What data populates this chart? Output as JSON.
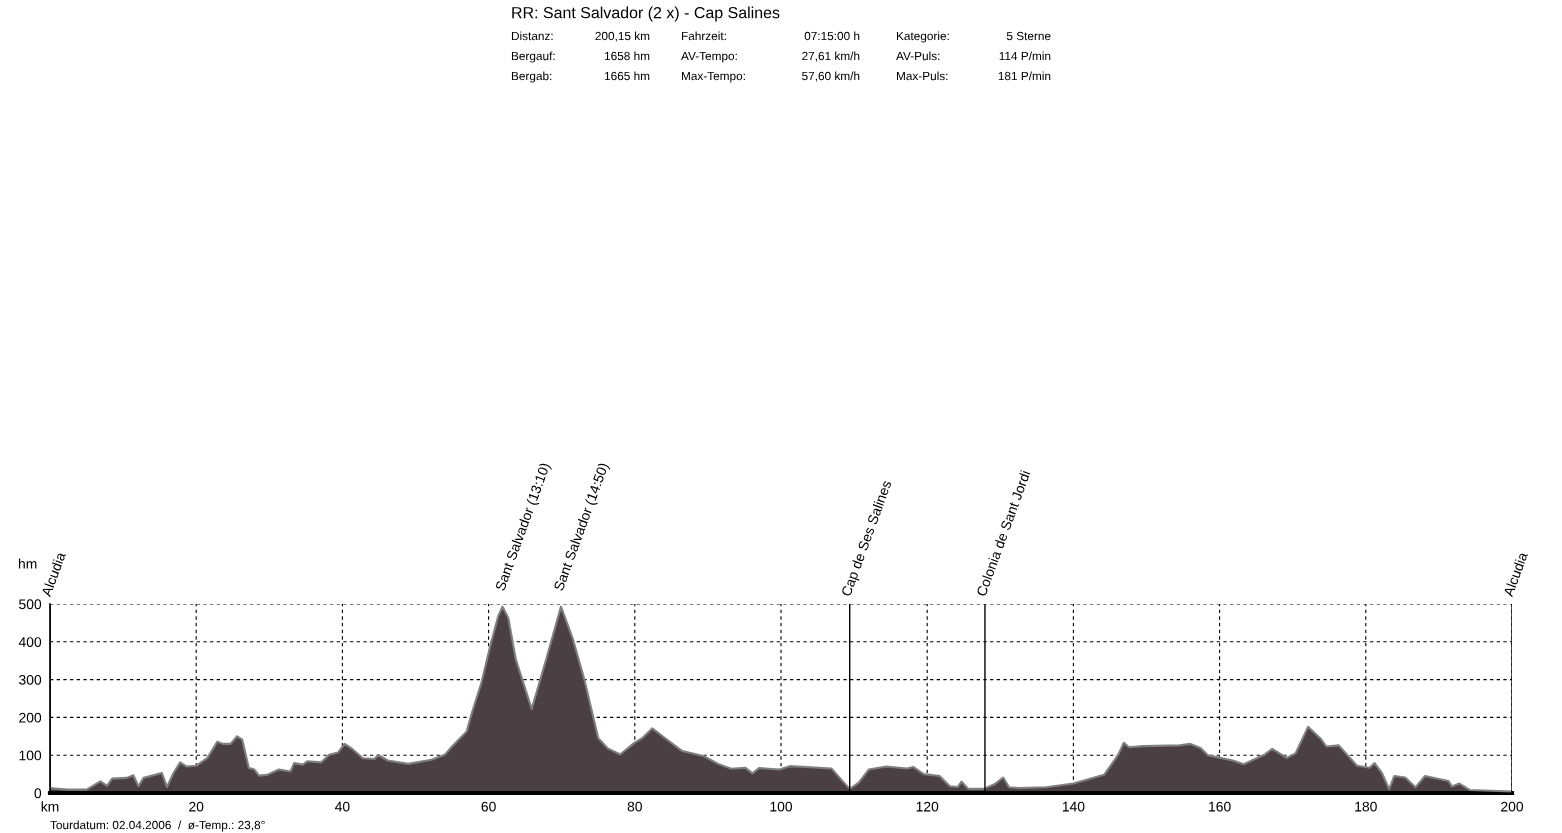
{
  "chart_data": {
    "type": "area",
    "title": "RR: Sant Salvador (2 x) - Cap Salines",
    "xlabel": "hm",
    "annotations": [
      "Distanz:",
      "200,15 km",
      "Fahrzeit:",
      "07:15:00 h",
      "Kategorie:",
      "5 Sterne",
      "Bergauf:",
      "1658 hm",
      "AV-Tempo:",
      "27,61 km/h",
      "AV-Puls:",
      "114 P/min",
      "Bergab:",
      "1665 hm",
      "Max-Tempo:",
      "57,60 km/h",
      "Max-Puls:",
      "181 P/min",
      "Tourdatum: 02.04.2006  /  ø-Temp.: 23,8°",
      {
        "text": "Sant Salvador (13:10)",
        "x": 61.9,
        "y": 493
      },
      {
        "text": "Sant Salvador (14:50)",
        "x": 69.9,
        "y": 493
      }
    ],
    "series": [
      {
        "color": "#4a4044",
        "x": [
          0,
          2.3,
          5,
          6.9,
          7.8,
          8.5,
          10.5,
          11.4,
          12.1,
          12.8,
          15.3,
          16,
          16.9,
          17.8,
          18.7,
          20,
          21.5,
          22.9,
          23.6,
          24.7,
          25.6,
          26.3,
          27.2,
          27.9,
          28.6,
          29.7,
          31.3,
          32.9,
          33.4,
          34.6,
          35.2,
          37.1,
          38.2,
          39.4,
          40.3,
          41.2,
          42.8,
          44.4,
          44.9,
          46.2,
          49,
          52.2,
          54,
          55,
          57,
          57.7,
          59,
          60.2,
          61.3,
          61.9,
          62.7,
          63.7,
          65.9,
          67.9,
          69.9,
          71.5,
          73.1,
          75,
          76.3,
          78,
          79.9,
          81,
          82.4,
          83.8,
          86.5,
          89.5,
          91.4,
          93.2,
          95.1,
          96.1,
          97,
          99.8,
          101.2,
          104,
          106.9,
          108.3,
          109.4,
          110.6,
          112,
          114.4,
          117.2,
          118.1,
          119.5,
          121.7,
          123.1,
          124.2,
          124.7,
          125.6,
          127.7,
          129.2,
          130.4,
          131.2,
          132.5,
          136.3,
          140,
          144.2,
          146.1,
          146.9,
          147.6,
          149.6,
          154.5,
          156,
          157.4,
          158.4,
          161.8,
          163.3,
          166.2,
          167.2,
          169.2,
          170.4,
          172.1,
          173.9,
          174.6,
          176.3,
          178.8,
          180.5,
          181.2,
          182.2,
          183.2,
          183.9,
          185.4,
          186.8,
          188.1,
          191.3,
          191.8,
          192.8,
          194.2,
          200
        ],
        "values": [
          13,
          9,
          9,
          31,
          19,
          38,
          40,
          47,
          18,
          40,
          53,
          16,
          53,
          81,
          70,
          72,
          92,
          136,
          130,
          130,
          150,
          141,
          66,
          63,
          46,
          48,
          62,
          57,
          79,
          75,
          84,
          81,
          101,
          107,
          130,
          119,
          92,
          90,
          101,
          86,
          77,
          88,
          101,
          123,
          163,
          211,
          290,
          387,
          467,
          493,
          463,
          355,
          222,
          355,
          493,
          409,
          300,
          145,
          118,
          102,
          132,
          145,
          171,
          150,
          111,
          97,
          77,
          64,
          67,
          52,
          66,
          62,
          71,
          68,
          65,
          34,
          11,
          27,
          62,
          70,
          65,
          69,
          50,
          45,
          18,
          16,
          30,
          11,
          11,
          23,
          41,
          15,
          13,
          15,
          25,
          48,
          100,
          133,
          121,
          124,
          126,
          130,
          119,
          100,
          86,
          76,
          102,
          117,
          93,
          105,
          175,
          142,
          123,
          126,
          72,
          67,
          79,
          53,
          10,
          45,
          41,
          15,
          45,
          32,
          17,
          25,
          8,
          4
        ]
      }
    ],
    "xlim": [
      0,
      200
    ],
    "xticks": [
      {
        "value": 0,
        "label": "km"
      },
      20,
      40,
      60,
      80,
      100,
      120,
      140,
      160,
      180,
      200
    ],
    "ylim": [
      0,
      500
    ],
    "yticks": [
      0,
      100,
      200,
      300,
      400,
      500
    ],
    "grid": true,
    "line_style": "solid",
    "ref_lines": [
      {
        "axis": "x",
        "value": 0,
        "label": "Alcudia"
      },
      {
        "axis": "x",
        "value": 109.4,
        "label": "Cap de Ses Salines"
      },
      {
        "axis": "x",
        "value": 127.9,
        "label": "Colonia de Sant Jordi"
      },
      {
        "axis": "x",
        "value": 200,
        "label": "Alcudia"
      }
    ]
  }
}
